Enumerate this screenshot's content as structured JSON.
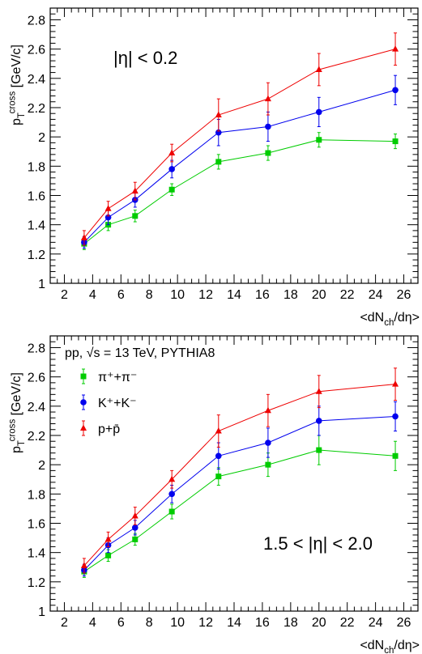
{
  "chart_data": [
    {
      "type": "scatter",
      "annotation": "|η| < 0.2",
      "xlabel": "<dN_ch/dη>",
      "ylabel": "p_T^cross [GeV/c]",
      "xlim": [
        1,
        27
      ],
      "ylim": [
        1.0,
        2.88
      ],
      "x_ticks": [
        2,
        4,
        6,
        8,
        10,
        12,
        14,
        16,
        18,
        20,
        22,
        24,
        26
      ],
      "y_ticks": [
        1,
        1.2,
        1.4,
        1.6,
        1.8,
        2,
        2.2,
        2.4,
        2.6,
        2.8
      ],
      "legend": false,
      "series": [
        {
          "key": "pion",
          "color": "#00cc00",
          "marker": "square",
          "x": [
            3.4,
            5.1,
            7.0,
            9.6,
            12.9,
            16.4,
            20.0,
            25.4
          ],
          "y": [
            1.27,
            1.4,
            1.46,
            1.64,
            1.83,
            1.89,
            1.98,
            1.97
          ],
          "err": [
            0.04,
            0.04,
            0.04,
            0.04,
            0.05,
            0.05,
            0.05,
            0.05
          ]
        },
        {
          "key": "kaon",
          "color": "#0000ee",
          "marker": "circle",
          "x": [
            3.4,
            5.1,
            7.0,
            9.6,
            12.9,
            16.4,
            20.0,
            25.4
          ],
          "y": [
            1.28,
            1.45,
            1.57,
            1.78,
            2.03,
            2.07,
            2.17,
            2.32
          ],
          "err": [
            0.04,
            0.05,
            0.05,
            0.06,
            0.09,
            0.1,
            0.1,
            0.1
          ]
        },
        {
          "key": "proton",
          "color": "#ee0000",
          "marker": "triangle",
          "x": [
            3.4,
            5.1,
            7.0,
            9.6,
            12.9,
            16.4,
            20.0,
            25.4
          ],
          "y": [
            1.31,
            1.51,
            1.63,
            1.89,
            2.15,
            2.26,
            2.46,
            2.6
          ],
          "err": [
            0.05,
            0.05,
            0.06,
            0.06,
            0.11,
            0.11,
            0.11,
            0.11
          ]
        }
      ]
    },
    {
      "type": "scatter",
      "annotation": "1.5 < |η| < 2.0",
      "legend_title": "pp, √s = 13 TeV, PYTHIA8",
      "xlabel": "<dN_ch/dη>",
      "ylabel": "p_T^cross [GeV/c]",
      "xlim": [
        1,
        27
      ],
      "ylim": [
        1.0,
        2.88
      ],
      "x_ticks": [
        2,
        4,
        6,
        8,
        10,
        12,
        14,
        16,
        18,
        20,
        22,
        24,
        26
      ],
      "y_ticks": [
        1,
        1.2,
        1.4,
        1.6,
        1.8,
        2,
        2.2,
        2.4,
        2.6,
        2.8
      ],
      "legend": "top-left",
      "series": [
        {
          "key": "pion",
          "name": "π⁺+π⁻",
          "color": "#00cc00",
          "marker": "square",
          "x": [
            3.4,
            5.1,
            7.0,
            9.6,
            12.9,
            16.4,
            20.0,
            25.4
          ],
          "y": [
            1.27,
            1.38,
            1.49,
            1.68,
            1.92,
            2.0,
            2.1,
            2.06
          ],
          "err": [
            0.04,
            0.04,
            0.04,
            0.05,
            0.06,
            0.08,
            0.1,
            0.1
          ]
        },
        {
          "key": "kaon",
          "name": "K⁺+K⁻",
          "color": "#0000ee",
          "marker": "circle",
          "x": [
            3.4,
            5.1,
            7.0,
            9.6,
            12.9,
            16.4,
            20.0,
            25.4
          ],
          "y": [
            1.28,
            1.45,
            1.57,
            1.8,
            2.06,
            2.15,
            2.3,
            2.33
          ],
          "err": [
            0.04,
            0.05,
            0.05,
            0.06,
            0.09,
            0.1,
            0.1,
            0.1
          ]
        },
        {
          "key": "proton",
          "name": "p+p̄",
          "color": "#ee0000",
          "marker": "triangle",
          "x": [
            3.4,
            5.1,
            7.0,
            9.6,
            12.9,
            16.4,
            20.0,
            25.4
          ],
          "y": [
            1.31,
            1.49,
            1.65,
            1.9,
            2.23,
            2.37,
            2.5,
            2.55
          ],
          "err": [
            0.05,
            0.05,
            0.06,
            0.06,
            0.11,
            0.11,
            0.11,
            0.11
          ]
        }
      ]
    }
  ]
}
